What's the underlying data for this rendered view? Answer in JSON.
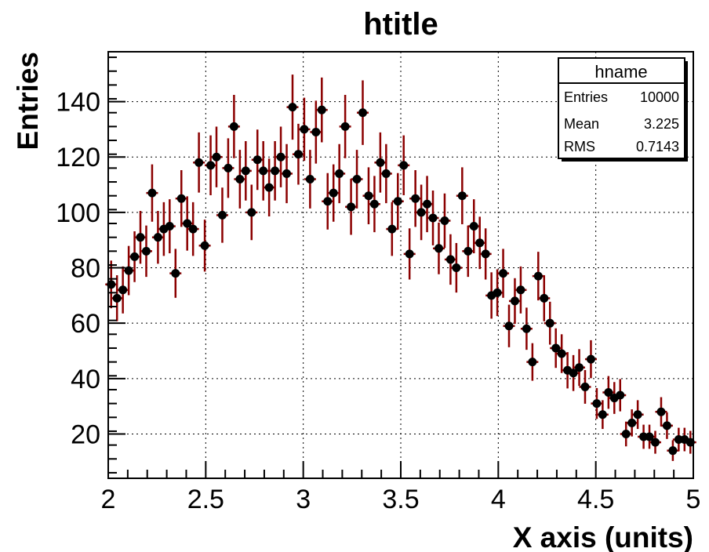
{
  "chart_data": {
    "type": "scatter",
    "title": "htitle",
    "xlabel": "X axis (units)",
    "ylabel": "Entries",
    "xlim": [
      2,
      5
    ],
    "ylim": [
      4,
      158
    ],
    "grid": true,
    "x_ticks": [
      "2",
      "2.5",
      "3",
      "3.5",
      "4",
      "4.5",
      "5"
    ],
    "y_ticks": [
      "20",
      "40",
      "60",
      "80",
      "100",
      "120",
      "140"
    ],
    "marker_color": "#000000",
    "error_color": "#8b0000",
    "stats_box": {
      "name": "hname",
      "rows": [
        {
          "label": "Entries",
          "value": "10000"
        },
        {
          "label": "Mean",
          "value": "3.225"
        },
        {
          "label": "RMS",
          "value": "0.7143"
        }
      ]
    },
    "series": [
      {
        "x": [
          2.015,
          2.045,
          2.075,
          2.105,
          2.135,
          2.165,
          2.195,
          2.225,
          2.255,
          2.285,
          2.315,
          2.345,
          2.375,
          2.405,
          2.435,
          2.465,
          2.495,
          2.525,
          2.555,
          2.585,
          2.615,
          2.645,
          2.675,
          2.705,
          2.735,
          2.765,
          2.795,
          2.825,
          2.855,
          2.885,
          2.915,
          2.945,
          2.975,
          3.005,
          3.035,
          3.065,
          3.095,
          3.125,
          3.155,
          3.185,
          3.215,
          3.245,
          3.275,
          3.305,
          3.335,
          3.365,
          3.395,
          3.425,
          3.455,
          3.485,
          3.515,
          3.545,
          3.575,
          3.605,
          3.635,
          3.665,
          3.695,
          3.725,
          3.755,
          3.785,
          3.815,
          3.845,
          3.875,
          3.905,
          3.935,
          3.965,
          3.995,
          4.025,
          4.055,
          4.085,
          4.115,
          4.145,
          4.175,
          4.205,
          4.235,
          4.265,
          4.295,
          4.325,
          4.355,
          4.385,
          4.415,
          4.445,
          4.475,
          4.505,
          4.535,
          4.565,
          4.595,
          4.625,
          4.655,
          4.685,
          4.715,
          4.745,
          4.775,
          4.805,
          4.835,
          4.865,
          4.895,
          4.925,
          4.955,
          4.985
        ],
        "y": [
          74,
          69,
          72,
          79,
          84,
          91,
          86,
          107,
          91,
          94,
          95,
          78,
          105,
          96,
          94,
          118,
          88,
          117,
          120,
          99,
          116,
          131,
          112,
          115,
          100,
          119,
          115,
          109,
          115,
          120,
          114,
          138,
          121,
          130,
          112,
          129,
          137,
          104,
          107,
          114,
          131,
          102,
          112,
          136,
          106,
          103,
          118,
          114,
          94,
          104,
          117,
          85,
          105,
          100,
          103,
          98,
          87,
          97,
          83,
          80,
          106,
          86,
          95,
          89,
          85,
          70,
          71,
          78,
          59,
          68,
          72,
          58,
          46,
          77,
          69,
          60,
          51,
          49,
          43,
          42,
          44,
          37,
          47,
          31,
          27,
          35,
          33,
          34,
          20,
          24,
          27,
          19,
          19,
          17,
          28,
          23,
          14,
          18,
          18,
          17
        ]
      }
    ]
  }
}
